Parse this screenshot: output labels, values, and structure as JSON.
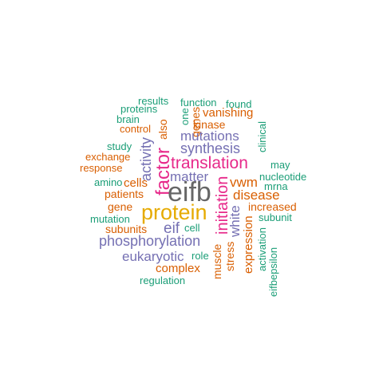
{
  "colors": {
    "teal": "#1b9e77",
    "orange": "#d95f02",
    "purple": "#7570b3",
    "magenta": "#e7298a",
    "gold": "#e6ab02",
    "gray": "#666666"
  },
  "words": {
    "results": "results",
    "function": "function",
    "found": "found",
    "proteins": "proteins",
    "one": "one",
    "genes": "genes",
    "vanishing": "vanishing",
    "brain": "brain",
    "also": "also",
    "kinase": "kinase",
    "control": "control",
    "clinical": "clinical",
    "mutations": "mutations",
    "study": "study",
    "activity": "activity",
    "synthesis": "synthesis",
    "exchange": "exchange",
    "response": "response",
    "translation": "translation",
    "may": "may",
    "factor": "factor",
    "matter": "matter",
    "nucleotide": "nucleotide",
    "amino": "amino",
    "cells": "cells",
    "eifb": "eifb",
    "vwm": "vwm",
    "mrna": "mrna",
    "patients": "patients",
    "initiation": "initiation",
    "disease": "disease",
    "gene": "gene",
    "protein": "protein",
    "increased": "increased",
    "white": "white",
    "mutation": "mutation",
    "expression": "expression",
    "subunit": "subunit",
    "subunits": "subunits",
    "eif": "eif",
    "cell": "cell",
    "phosphorylation": "phosphorylation",
    "activation": "activation",
    "eukaryotic": "eukaryotic",
    "role": "role",
    "stress": "stress",
    "muscle": "muscle",
    "complex": "complex",
    "eifbepsilon": "eifbepsilon",
    "regulation": "regulation"
  }
}
